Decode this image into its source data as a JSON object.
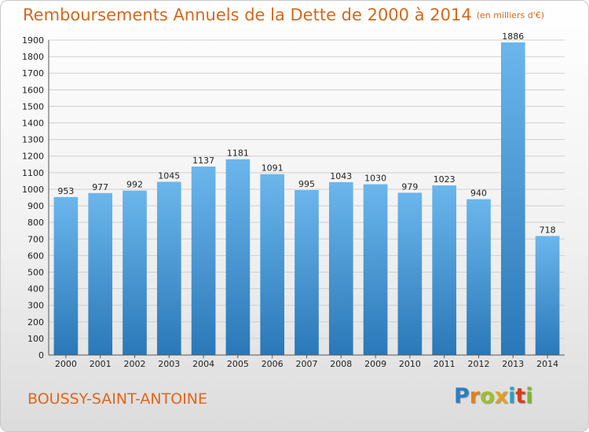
{
  "chart_data": {
    "type": "bar",
    "title": "Remboursements Annuels de la Dette de 2000 à 2014",
    "subtitle": "(en milliers d'€)",
    "categories": [
      "2000",
      "2001",
      "2002",
      "2003",
      "2004",
      "2005",
      "2006",
      "2007",
      "2008",
      "2009",
      "2010",
      "2011",
      "2012",
      "2013",
      "2014"
    ],
    "values": [
      953,
      977,
      992,
      1045,
      1137,
      1181,
      1091,
      995,
      1043,
      1030,
      979,
      1023,
      940,
      1886,
      718
    ],
    "ylim": [
      0,
      1900
    ],
    "yticks": [
      0,
      100,
      200,
      300,
      400,
      500,
      600,
      700,
      800,
      900,
      1000,
      1100,
      1200,
      1300,
      1400,
      1500,
      1600,
      1700,
      1800,
      1900
    ],
    "grid": true,
    "bar_color_top": "#6bb6ec",
    "bar_color_bottom": "#2a78b8"
  },
  "footer": {
    "city": "BOUSSY-SAINT-ANTOINE",
    "logo_letters": [
      {
        "ch": "P",
        "color": "#2b7fc0"
      },
      {
        "ch": "r",
        "color": "#e2801f"
      },
      {
        "ch": "o",
        "color": "#9fbf2c"
      },
      {
        "ch": "x",
        "color": "#e2a01f"
      },
      {
        "ch": "i",
        "color": "#2b9fc0"
      },
      {
        "ch": "t",
        "color": "#d04020"
      },
      {
        "ch": "i",
        "color": "#7ab62c"
      }
    ]
  }
}
